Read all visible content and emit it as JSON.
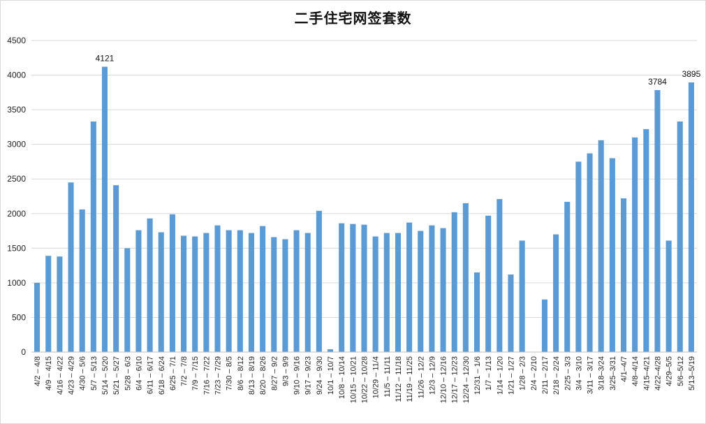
{
  "chart_data": {
    "type": "bar",
    "title": "二手住宅网签套数",
    "xlabel": "",
    "ylabel": "",
    "ylim": [
      0,
      4500
    ],
    "yticks": [
      0,
      500,
      1000,
      1500,
      2000,
      2500,
      3000,
      3500,
      4000,
      4500
    ],
    "grid": true,
    "legend": "none",
    "bar_color": "#5b9bd5",
    "grid_color": "#d9d9d9",
    "categories": [
      "4/2 – 4/8",
      "4/9 – 4/15",
      "4/16 – 4/22",
      "4/23 – 4/29",
      "4/30 – 5/6",
      "5/7 – 5/13",
      "5/14 – 5/20",
      "5/21 – 5/27",
      "5/28 – 6/3",
      "6/4 – 6/10",
      "6/11 – 6/17",
      "6/18 – 6/24",
      "6/25 – 7/1",
      "7/2 – 7/8",
      "7/9 – 7/15",
      "7/16 – 7/22",
      "7/23 – 7/29",
      "7/30 – 8/5",
      "8/6 – 8/12",
      "8/13 – 8/19",
      "8/20 – 8/26",
      "8/27 – 9/2",
      "9/3 – 9/9",
      "9/10 – 9/16",
      "9/17 – 9/23",
      "9/24 – 9/30",
      "10/1 – 10/7",
      "10/8 – 10/14",
      "10/15 – 10/21",
      "10/22 – 10/28",
      "10/29 – 11/4",
      "11/5 – 11/11",
      "11/12 – 11/18",
      "11/19 – 11/25",
      "11/26 – 12/2",
      "12/3 – 12/9",
      "12/10 – 12/16",
      "12/17 – 12/23",
      "12/24 – 12/30",
      "12/31 – 1/6",
      "1/7 – 1/13",
      "1/14 – 1/20",
      "1/21 – 1/27",
      "1/28 – 2/3",
      "2/4 – 2/10",
      "2/11 – 2/17",
      "2/18 – 2/24",
      "2/25 – 3/3",
      "3/4 – 3/10",
      "3/11 – 3/17",
      "3/18–3/24",
      "3/25–3/31",
      "4/1–4/7",
      "4/8–4/14",
      "4/15–4/21",
      "4/22–4/28",
      "4/29–5/5",
      "5/6–5/12",
      "5/13–5/19"
    ],
    "values": [
      1000,
      1390,
      1380,
      2450,
      2060,
      3330,
      4121,
      2410,
      1500,
      1760,
      1930,
      1730,
      1990,
      1680,
      1670,
      1720,
      1830,
      1760,
      1760,
      1720,
      1820,
      1660,
      1630,
      1760,
      1720,
      2040,
      40,
      1860,
      1850,
      1840,
      1670,
      1720,
      1720,
      1870,
      1750,
      1830,
      1790,
      2020,
      2150,
      1150,
      1970,
      2210,
      1120,
      1610,
      0,
      760,
      1700,
      2170,
      2750,
      2870,
      3060,
      2800,
      2220,
      3100,
      3220,
      3784,
      1610,
      3330,
      3895
    ],
    "data_labels": [
      {
        "index": 6,
        "text": "4121"
      },
      {
        "index": 55,
        "text": "3784"
      },
      {
        "index": 58,
        "text": "3895"
      }
    ]
  }
}
